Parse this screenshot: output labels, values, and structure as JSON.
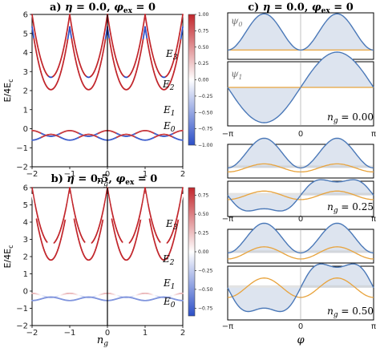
{
  "chart_data": [
    {
      "id": "panel-a",
      "type": "line",
      "title_letter": "a)",
      "title": "η = 0.0, φ_ex = 0",
      "title_parts": {
        "eta": "η",
        "eq1": " = 0.0, ",
        "phi": "φ",
        "sub": "ex",
        "eq2": " = 0"
      },
      "xlabel": "n",
      "xlabel_sub": "g",
      "ylabel": "E/4E",
      "ylabel_sub": "c",
      "xlim": [
        -2,
        2
      ],
      "ylim": [
        -2,
        6
      ],
      "xticks": [
        -2,
        -1,
        0,
        1,
        2
      ],
      "yticks": [
        -2,
        -1,
        0,
        1,
        2,
        3,
        4,
        5,
        6
      ],
      "level_labels": [
        {
          "text": "E",
          "sub": "3"
        },
        {
          "text": "E",
          "sub": "2"
        },
        {
          "text": "E",
          "sub": "1"
        },
        {
          "text": "E",
          "sub": "0"
        }
      ],
      "colorbar": {
        "min": -1.0,
        "max": 1.0,
        "ticks": [
          "1.00",
          "0.75",
          "0.50",
          "0.25",
          "0.00",
          "−0.25",
          "−0.50",
          "−0.75",
          "−1.00"
        ]
      }
    },
    {
      "id": "panel-b",
      "type": "line",
      "title_letter": "b)",
      "title": "η = 0.5, φ_ex = 0",
      "title_parts": {
        "eta": "η",
        "eq1": " = 0.5, ",
        "phi": "φ",
        "sub": "ex",
        "eq2": " = 0"
      },
      "xlabel": "n",
      "xlabel_sub": "g",
      "ylabel": "E/4E",
      "ylabel_sub": "c",
      "xlim": [
        -2,
        2
      ],
      "ylim": [
        -2,
        6
      ],
      "xticks": [
        -2,
        -1,
        0,
        1,
        2
      ],
      "yticks": [
        -2,
        -1,
        0,
        1,
        2,
        3,
        4,
        5,
        6
      ],
      "level_labels": [
        {
          "text": "E",
          "sub": "3"
        },
        {
          "text": "E",
          "sub": "2"
        },
        {
          "text": "E",
          "sub": "1"
        },
        {
          "text": "E",
          "sub": "0"
        }
      ],
      "colorbar": {
        "min": -0.8,
        "max": 0.8,
        "ticks": [
          "0.75",
          "0.50",
          "0.25",
          "0.00",
          "−0.25",
          "−0.50",
          "−0.75"
        ]
      }
    },
    {
      "id": "panel-c",
      "type": "line",
      "title_letter": "c)",
      "title": "η = 0.0, φ_ex = 0",
      "title_parts": {
        "eta": "η",
        "eq1": " = 0.0, ",
        "phi": "φ",
        "sub": "ex",
        "eq2": " = 0"
      },
      "xlabel": "φ",
      "xticks": [
        "−π",
        "0",
        "π"
      ],
      "psi_labels": [
        {
          "text": "ψ",
          "sub": "0"
        },
        {
          "text": "ψ",
          "sub": "1"
        }
      ],
      "ng_values": [
        {
          "text": "n",
          "sub": "g",
          "value": " = 0.00"
        },
        {
          "text": "n",
          "sub": "g",
          "value": " = 0.25"
        },
        {
          "text": "n",
          "sub": "g",
          "value": " = 0.50"
        }
      ],
      "series": [
        {
          "name": "ψ0",
          "color": "#4a78b8"
        },
        {
          "name": "ψ1",
          "color": "#4a78b8"
        }
      ]
    }
  ],
  "colors": {
    "blue": "#2c4fc7",
    "red": "#c2272d",
    "white": "#ffffff",
    "wave": "#4a78b8",
    "fill": "#dde4ef",
    "potential": "#e8a33c",
    "graybar": "#c8c8c8"
  }
}
